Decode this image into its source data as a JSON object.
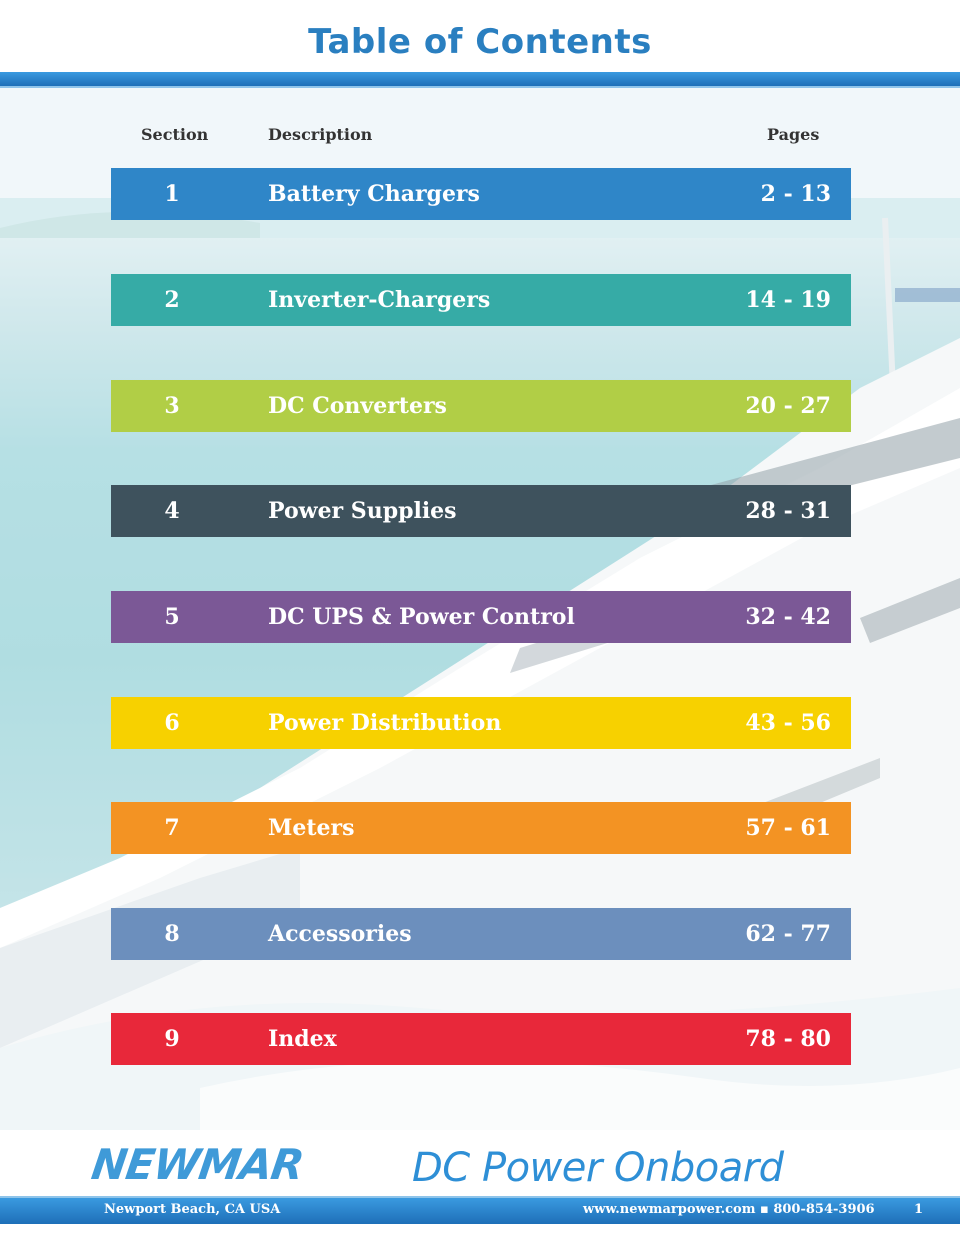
{
  "page_title": "Table of Contents",
  "headers": {
    "section": "Section",
    "description": "Description",
    "pages": "Pages"
  },
  "entries": [
    {
      "section": "1",
      "description": "Battery Chargers",
      "pages": "2 - 13",
      "color": "#2f86c8"
    },
    {
      "section": "2",
      "description": "Inverter-Chargers",
      "pages": "14 - 19",
      "color": "#36aba6"
    },
    {
      "section": "3",
      "description": "DC Converters",
      "pages": "20 - 27",
      "color": "#b1ce46"
    },
    {
      "section": "4",
      "description": "Power Supplies",
      "pages": "28 - 31",
      "color": "#3e525d"
    },
    {
      "section": "5",
      "description": "DC UPS & Power Control",
      "pages": "32 - 42",
      "color": "#7b5896"
    },
    {
      "section": "6",
      "description": "Power Distribution",
      "pages": "43 - 56",
      "color": "#f7d100"
    },
    {
      "section": "7",
      "description": "Meters",
      "pages": "57 - 61",
      "color": "#f39323"
    },
    {
      "section": "8",
      "description": "Accessories",
      "pages": "62 - 77",
      "color": "#6c8fbd"
    },
    {
      "section": "9",
      "description": "Index",
      "pages": "78 - 80",
      "color": "#e8283a"
    }
  ],
  "brand": {
    "logo": "NEWMAR",
    "tagline": "DC Power Onboard"
  },
  "footer": {
    "location": "Newport Beach, CA USA",
    "contact": "www.newmarpower.com ▪ 800-854-3906",
    "page_number": "1"
  }
}
